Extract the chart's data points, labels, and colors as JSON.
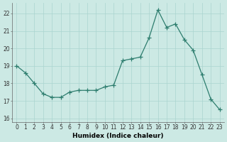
{
  "x": [
    0,
    1,
    2,
    3,
    4,
    5,
    6,
    7,
    8,
    9,
    10,
    11,
    12,
    13,
    14,
    15,
    16,
    17,
    18,
    19,
    20,
    21,
    22,
    23
  ],
  "y": [
    19.0,
    18.6,
    18.0,
    17.4,
    17.2,
    17.2,
    17.5,
    17.6,
    17.6,
    17.6,
    17.8,
    17.9,
    19.3,
    19.4,
    19.5,
    20.6,
    22.2,
    21.2,
    21.4,
    20.5,
    19.9,
    18.5,
    17.1,
    16.5
  ],
  "bg_color": "#cce9e4",
  "line_color": "#2d7d6e",
  "marker_color": "#2d7d6e",
  "grid_color": "#aad4cf",
  "axis_label_color": "#000000",
  "xlabel": "Humidex (Indice chaleur)",
  "ylim": [
    15.8,
    22.6
  ],
  "xlim": [
    -0.5,
    23.5
  ],
  "yticks": [
    16,
    17,
    18,
    19,
    20,
    21,
    22
  ],
  "xticks": [
    0,
    1,
    2,
    3,
    4,
    5,
    6,
    7,
    8,
    9,
    10,
    11,
    12,
    13,
    14,
    15,
    16,
    17,
    18,
    19,
    20,
    21,
    22,
    23
  ],
  "tick_fontsize": 5.5,
  "xlabel_fontsize": 6.5,
  "xlabel_bold": true,
  "tick_color": "#333333",
  "spine_color": "#666666"
}
